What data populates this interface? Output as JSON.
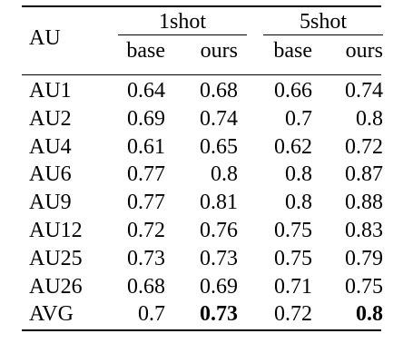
{
  "table": {
    "row_header": "AU",
    "groups": [
      "1shot",
      "5shot"
    ],
    "subheaders": [
      "base",
      "ours",
      "base",
      "ours"
    ],
    "rows": [
      {
        "label": "AU1",
        "values": [
          "0.64",
          "0.68",
          "0.66",
          "0.74"
        ],
        "bold": [
          false,
          false,
          false,
          false
        ]
      },
      {
        "label": "AU2",
        "values": [
          "0.69",
          "0.74",
          "0.7",
          "0.8"
        ],
        "bold": [
          false,
          false,
          false,
          false
        ]
      },
      {
        "label": "AU4",
        "values": [
          "0.61",
          "0.65",
          "0.62",
          "0.72"
        ],
        "bold": [
          false,
          false,
          false,
          false
        ]
      },
      {
        "label": "AU6",
        "values": [
          "0.77",
          "0.8",
          "0.8",
          "0.87"
        ],
        "bold": [
          false,
          false,
          false,
          false
        ]
      },
      {
        "label": "AU9",
        "values": [
          "0.77",
          "0.81",
          "0.8",
          "0.88"
        ],
        "bold": [
          false,
          false,
          false,
          false
        ]
      },
      {
        "label": "AU12",
        "values": [
          "0.72",
          "0.76",
          "0.75",
          "0.83"
        ],
        "bold": [
          false,
          false,
          false,
          false
        ]
      },
      {
        "label": "AU25",
        "values": [
          "0.73",
          "0.73",
          "0.75",
          "0.79"
        ],
        "bold": [
          false,
          false,
          false,
          false
        ]
      },
      {
        "label": "AU26",
        "values": [
          "0.68",
          "0.69",
          "0.71",
          "0.75"
        ],
        "bold": [
          false,
          false,
          false,
          false
        ]
      },
      {
        "label": "AVG",
        "values": [
          "0.7",
          "0.73",
          "0.72",
          "0.8"
        ],
        "bold": [
          false,
          true,
          false,
          true
        ]
      }
    ]
  }
}
